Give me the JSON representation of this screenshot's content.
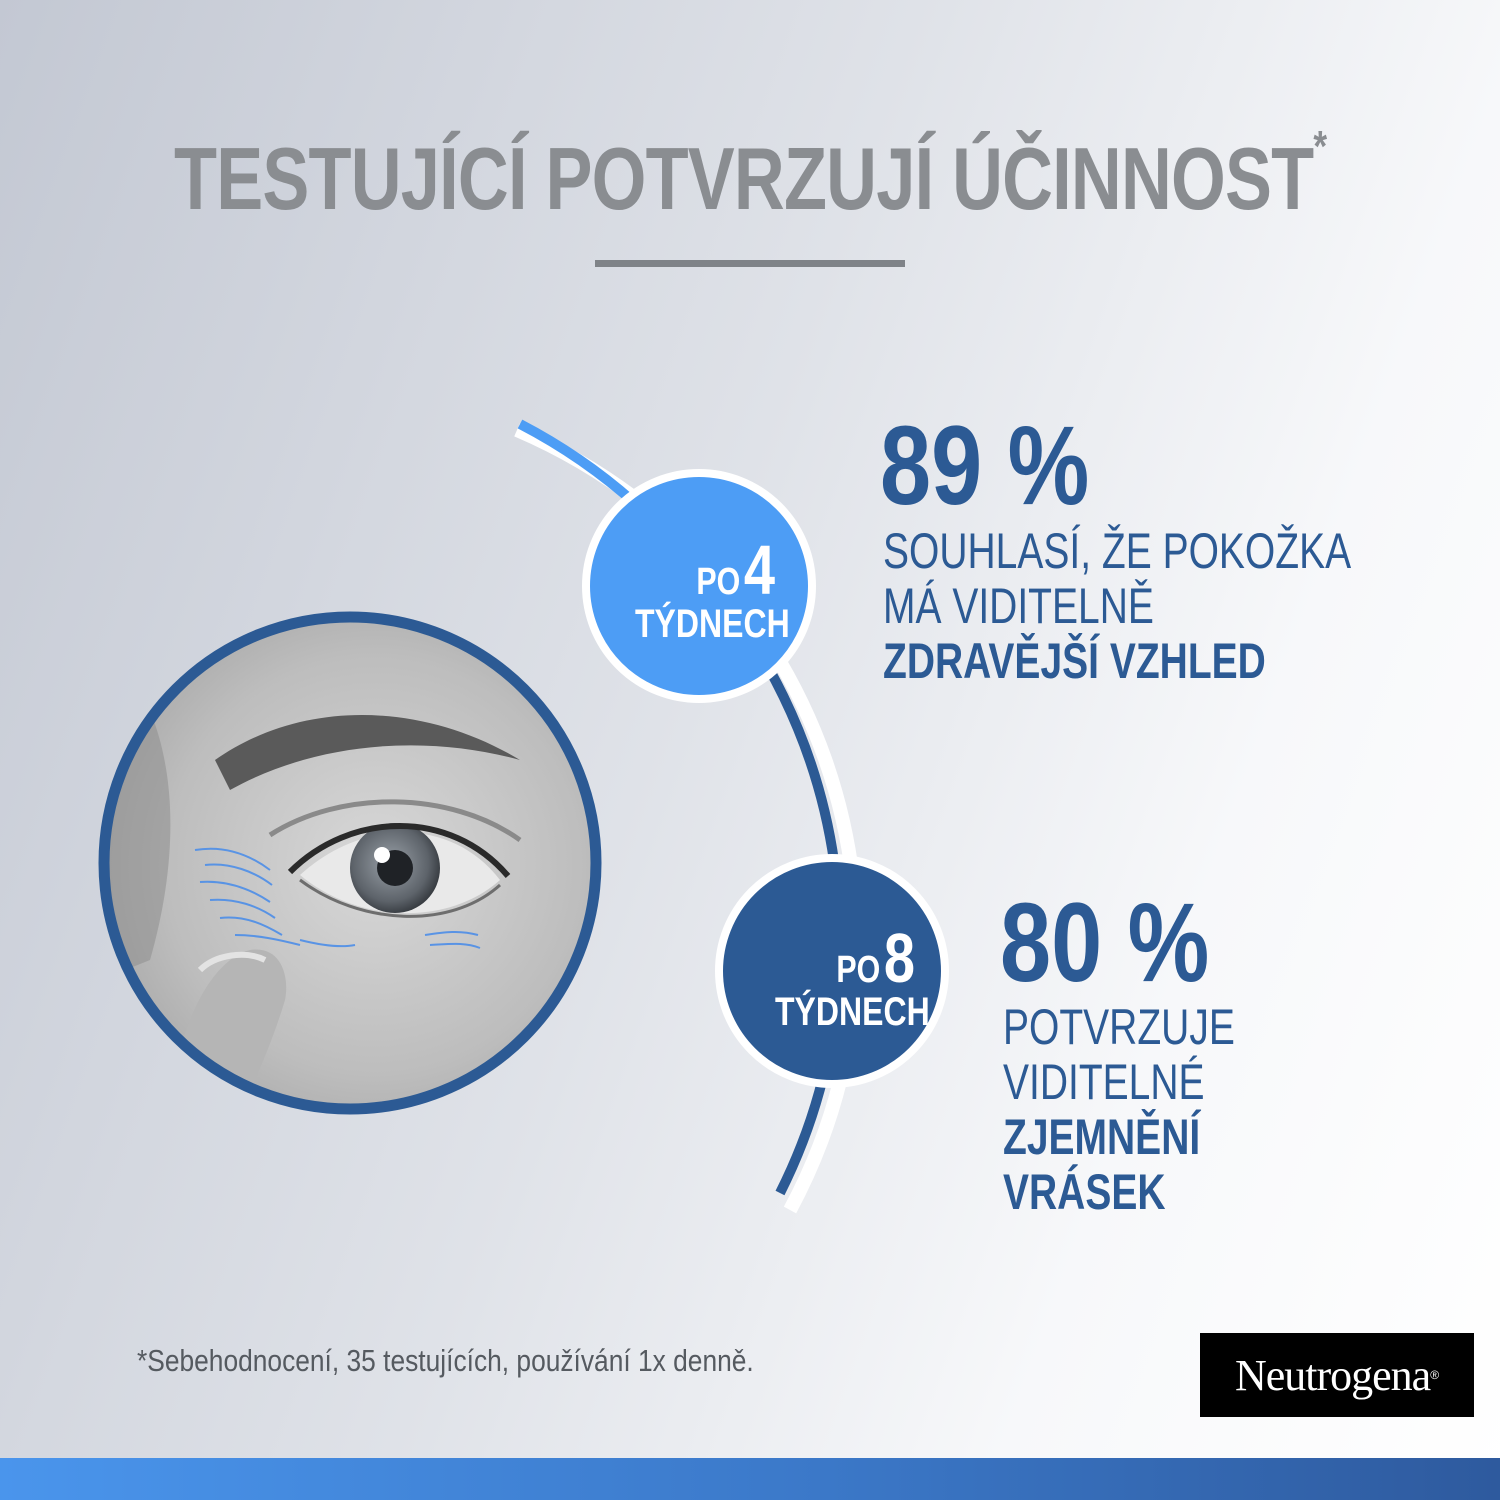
{
  "title": {
    "text": "TESTUJÍCÍ POTVRZUJÍ ÚČINNOST",
    "asterisk": "*"
  },
  "colors": {
    "dark_blue": "#2c5a94",
    "light_blue": "#4d9df5",
    "gray_title": "#8a8d91",
    "logo_bg": "#000000"
  },
  "stats": [
    {
      "badge_prefix": "PO",
      "badge_number": "4",
      "badge_unit": "TÝDNECH",
      "percent": "89 %",
      "lines_normal": [
        "SOUHLASÍ, ŽE POKOŽKA",
        "MÁ VIDITELNĚ"
      ],
      "lines_bold": [
        "ZDRAVĚJŠÍ VZHLED"
      ]
    },
    {
      "badge_prefix": "PO",
      "badge_number": "8",
      "badge_unit": "TÝDNECH",
      "percent": "80 %",
      "lines_normal": [
        "POTVRZUJE",
        "VIDITELNÉ"
      ],
      "lines_bold": [
        "ZJEMNĚNÍ",
        "VRÁSEK"
      ]
    }
  ],
  "image": {
    "icon": "eye-closeup-photo"
  },
  "footnote": "*Sebehodnocení, 35 testujících, používání 1x denně.",
  "logo": {
    "text": "Neutrogena",
    "mark": "®"
  }
}
